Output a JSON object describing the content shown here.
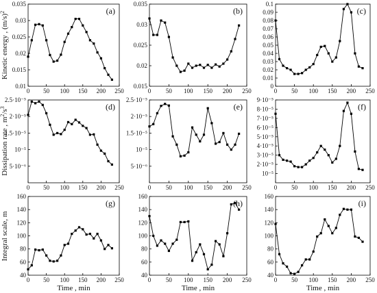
{
  "row_labels": [
    [
      "Kinetic energy , (m/s)",
      "2"
    ],
    [
      "Dissipation rate , m",
      "2",
      "/s",
      "3"
    ],
    [
      "Integral scale, m"
    ]
  ],
  "x_label": "Time , min",
  "x_ticks": [
    "0",
    "50",
    "100",
    "150",
    "200",
    "250"
  ],
  "chart_data": [
    {
      "type": "line",
      "panel_label": "(a)",
      "xlim": [
        0,
        250
      ],
      "ylim": [
        0.01,
        0.035
      ],
      "y_ticks": [
        {
          "v": 0.01,
          "t": "0.01"
        },
        {
          "v": 0.015,
          "t": "0.015"
        },
        {
          "v": 0.02,
          "t": "0.02"
        },
        {
          "v": 0.025,
          "t": "0.025"
        },
        {
          "v": 0.03,
          "t": "0.03"
        },
        {
          "v": 0.035,
          "t": "0.035"
        }
      ],
      "x": [
        0,
        10,
        20,
        30,
        40,
        50,
        60,
        70,
        80,
        90,
        100,
        110,
        120,
        130,
        140,
        150,
        160,
        170,
        180,
        190,
        200,
        210,
        220,
        230
      ],
      "y": [
        0.019,
        0.024,
        0.0287,
        0.0289,
        0.0285,
        0.024,
        0.0195,
        0.0175,
        0.0178,
        0.0196,
        0.0235,
        0.026,
        0.028,
        0.0305,
        0.0305,
        0.0285,
        0.0265,
        0.024,
        0.023,
        0.0203,
        0.0185,
        0.0155,
        0.0135,
        0.012
      ]
    },
    {
      "type": "line",
      "panel_label": "(b)",
      "xlim": [
        0,
        250
      ],
      "ylim": [
        0.015,
        0.035
      ],
      "y_ticks": [
        {
          "v": 0.015,
          "t": "0.015"
        },
        {
          "v": 0.02,
          "t": "0.02"
        },
        {
          "v": 0.025,
          "t": "0.025"
        },
        {
          "v": 0.03,
          "t": "0.03"
        },
        {
          "v": 0.035,
          "t": "0.035"
        }
      ],
      "x": [
        0,
        10,
        20,
        30,
        40,
        50,
        60,
        70,
        80,
        90,
        100,
        110,
        120,
        130,
        140,
        150,
        160,
        170,
        180,
        190,
        200,
        210,
        220,
        230
      ],
      "y": [
        0.0315,
        0.0275,
        0.0275,
        0.031,
        0.0305,
        0.027,
        0.022,
        0.02,
        0.0185,
        0.0188,
        0.0205,
        0.0195,
        0.02,
        0.0202,
        0.0195,
        0.0202,
        0.0195,
        0.0203,
        0.0198,
        0.0205,
        0.0215,
        0.0235,
        0.0265,
        0.0298
      ]
    },
    {
      "type": "line",
      "panel_label": "(c)",
      "xlim": [
        0,
        250
      ],
      "ylim": [
        0,
        0.1
      ],
      "y_ticks": [
        {
          "v": 0,
          "t": "0"
        },
        {
          "v": 0.01,
          "t": "0.01"
        },
        {
          "v": 0.02,
          "t": "0.02"
        },
        {
          "v": 0.03,
          "t": "0.03"
        },
        {
          "v": 0.04,
          "t": "0.04"
        },
        {
          "v": 0.05,
          "t": "0.05"
        },
        {
          "v": 0.06,
          "t": "0.06"
        },
        {
          "v": 0.07,
          "t": "0.07"
        },
        {
          "v": 0.08,
          "t": "0.08"
        },
        {
          "v": 0.09,
          "t": "0.09"
        },
        {
          "v": 0.1,
          "t": "0.1"
        }
      ],
      "x": [
        0,
        10,
        20,
        30,
        40,
        50,
        60,
        70,
        80,
        90,
        100,
        110,
        120,
        130,
        140,
        150,
        160,
        170,
        180,
        190,
        200,
        210,
        220,
        230
      ],
      "y": [
        0.08,
        0.033,
        0.025,
        0.022,
        0.02,
        0.015,
        0.015,
        0.016,
        0.02,
        0.023,
        0.027,
        0.038,
        0.048,
        0.049,
        0.04,
        0.03,
        0.035,
        0.055,
        0.094,
        0.1,
        0.09,
        0.04,
        0.024,
        0.022
      ]
    },
    {
      "type": "line",
      "panel_label": "(d)",
      "xlim": [
        0,
        250
      ],
      "ylim": [
        0,
        2.5e-05
      ],
      "y_ticks": [
        {
          "v": 5e-06,
          "t": "5·10⁻⁶"
        },
        {
          "v": 1e-05,
          "t": "10⁻⁵"
        },
        {
          "v": 1.5e-05,
          "t": "1.5·10⁻⁵"
        },
        {
          "v": 2e-05,
          "t": "2·10⁻⁵"
        },
        {
          "v": 2.5e-05,
          "t": "2.5·10⁻⁵"
        }
      ],
      "x": [
        0,
        10,
        20,
        30,
        40,
        50,
        60,
        70,
        80,
        90,
        100,
        110,
        120,
        130,
        140,
        150,
        160,
        170,
        180,
        190,
        200,
        210,
        220,
        230
      ],
      "y": [
        2.05e-05,
        2.45e-05,
        2.4e-05,
        2.45e-05,
        2.35e-05,
        2.1e-05,
        1.75e-05,
        1.45e-05,
        1.5e-05,
        1.47e-05,
        1.6e-05,
        1.83e-05,
        1.77e-05,
        1.9e-05,
        1.82e-05,
        1.72e-05,
        1.65e-05,
        1.45e-05,
        1.46e-05,
        1.15e-05,
        9.7e-06,
        8.8e-06,
        6.5e-06,
        5.5e-06
      ]
    },
    {
      "type": "line",
      "panel_label": "(e)",
      "xlim": [
        0,
        250
      ],
      "ylim": [
        0,
        2.5e-05
      ],
      "y_ticks": [
        {
          "v": 5e-06,
          "t": "5·10⁻⁶"
        },
        {
          "v": 1e-05,
          "t": "10⁻⁵"
        },
        {
          "v": 1.5e-05,
          "t": "1.5·10⁻⁵"
        },
        {
          "v": 2e-05,
          "t": "2·10⁻⁵"
        },
        {
          "v": 2.5e-05,
          "t": "2.5·10⁻⁵"
        }
      ],
      "x": [
        0,
        10,
        20,
        30,
        40,
        50,
        60,
        70,
        80,
        90,
        100,
        110,
        120,
        130,
        140,
        150,
        160,
        170,
        180,
        190,
        200,
        210,
        220,
        230
      ],
      "y": [
        1.7e-05,
        1.77e-05,
        2.1e-05,
        2.32e-05,
        2.38e-05,
        2.33e-05,
        1.4e-05,
        1.15e-05,
        8e-06,
        8.2e-06,
        9.2e-06,
        1.67e-05,
        1.45e-05,
        1.25e-05,
        1.45e-05,
        2.25e-05,
        1.8e-05,
        1.18e-05,
        1.23e-05,
        1.5e-05,
        1.15e-05,
        1e-05,
        1.15e-05,
        1.48e-05
      ]
    },
    {
      "type": "line",
      "panel_label": "(f)",
      "xlim": [
        0,
        250
      ],
      "ylim": [
        0,
        9e-05
      ],
      "y_ticks": [
        {
          "v": 1e-05,
          "t": "10⁻⁵"
        },
        {
          "v": 2e-05,
          "t": "2·10⁻⁵"
        },
        {
          "v": 3e-05,
          "t": "3·10⁻⁵"
        },
        {
          "v": 4e-05,
          "t": "4·10⁻⁵"
        },
        {
          "v": 5e-05,
          "t": "5·10⁻⁵"
        },
        {
          "v": 6e-05,
          "t": "6·10⁻⁵"
        },
        {
          "v": 7e-05,
          "t": "7·10⁻⁵"
        },
        {
          "v": 8e-05,
          "t": "8·10⁻⁵"
        },
        {
          "v": 9e-05,
          "t": "9·10⁻⁵"
        }
      ],
      "x": [
        0,
        10,
        20,
        30,
        40,
        50,
        60,
        70,
        80,
        90,
        100,
        110,
        120,
        130,
        140,
        150,
        160,
        170,
        180,
        190,
        200,
        210,
        220,
        230
      ],
      "y": [
        7.5e-05,
        3e-05,
        2.5e-05,
        2.4e-05,
        2.3e-05,
        1.8e-05,
        1.7e-05,
        1.7e-05,
        2e-05,
        2.4e-05,
        2.7e-05,
        3.3e-05,
        4e-05,
        3.6e-05,
        3e-05,
        2.2e-05,
        2.6e-05,
        4e-05,
        7.8e-05,
        8.7e-05,
        7.5e-05,
        3.4e-05,
        1.5e-05,
        1.4e-05
      ]
    },
    {
      "type": "line",
      "panel_label": "(g)",
      "xlim": [
        0,
        250
      ],
      "ylim": [
        40,
        160
      ],
      "y_ticks": [
        {
          "v": 40,
          "t": "40"
        },
        {
          "v": 60,
          "t": "60"
        },
        {
          "v": 80,
          "t": "80"
        },
        {
          "v": 100,
          "t": "100"
        },
        {
          "v": 120,
          "t": "120"
        },
        {
          "v": 140,
          "t": "140"
        },
        {
          "v": 160,
          "t": "160"
        }
      ],
      "x": [
        0,
        10,
        20,
        30,
        40,
        50,
        60,
        70,
        80,
        90,
        100,
        110,
        120,
        130,
        140,
        150,
        160,
        170,
        180,
        190,
        200,
        210,
        220,
        230
      ],
      "y": [
        49,
        55,
        79,
        78,
        79,
        70,
        62,
        61,
        62,
        70,
        86,
        88,
        103,
        108,
        113,
        110,
        102,
        103,
        96,
        103,
        93,
        80,
        86,
        81
      ]
    },
    {
      "type": "line",
      "panel_label": "(h)",
      "xlim": [
        0,
        250
      ],
      "ylim": [
        40,
        160
      ],
      "y_ticks": [
        {
          "v": 40,
          "t": "40"
        },
        {
          "v": 60,
          "t": "60"
        },
        {
          "v": 80,
          "t": "80"
        },
        {
          "v": 100,
          "t": "100"
        },
        {
          "v": 120,
          "t": "120"
        },
        {
          "v": 140,
          "t": "140"
        },
        {
          "v": 160,
          "t": "160"
        }
      ],
      "x": [
        0,
        10,
        20,
        30,
        40,
        50,
        60,
        70,
        80,
        90,
        100,
        110,
        120,
        130,
        140,
        150,
        160,
        170,
        180,
        190,
        200,
        210,
        220,
        230
      ],
      "y": [
        130,
        100,
        85,
        93,
        88,
        77,
        88,
        94,
        121,
        121,
        122,
        62,
        75,
        87,
        72,
        49,
        56,
        92,
        87,
        69,
        104,
        148,
        150,
        140
      ]
    },
    {
      "type": "line",
      "panel_label": "(i)",
      "xlim": [
        0,
        250
      ],
      "ylim": [
        40,
        160
      ],
      "y_ticks": [
        {
          "v": 40,
          "t": "40"
        },
        {
          "v": 60,
          "t": "60"
        },
        {
          "v": 80,
          "t": "80"
        },
        {
          "v": 100,
          "t": "100"
        },
        {
          "v": 120,
          "t": "120"
        },
        {
          "v": 140,
          "t": "140"
        },
        {
          "v": 160,
          "t": "160"
        }
      ],
      "x": [
        0,
        10,
        20,
        30,
        40,
        50,
        60,
        70,
        80,
        90,
        100,
        110,
        120,
        130,
        140,
        150,
        160,
        170,
        180,
        190,
        200,
        210,
        220,
        230
      ],
      "y": [
        118,
        72,
        58,
        53,
        43,
        42,
        45,
        55,
        64,
        64,
        76,
        99,
        104,
        125,
        115,
        104,
        112,
        132,
        141,
        140,
        140,
        99,
        97,
        91
      ]
    }
  ]
}
